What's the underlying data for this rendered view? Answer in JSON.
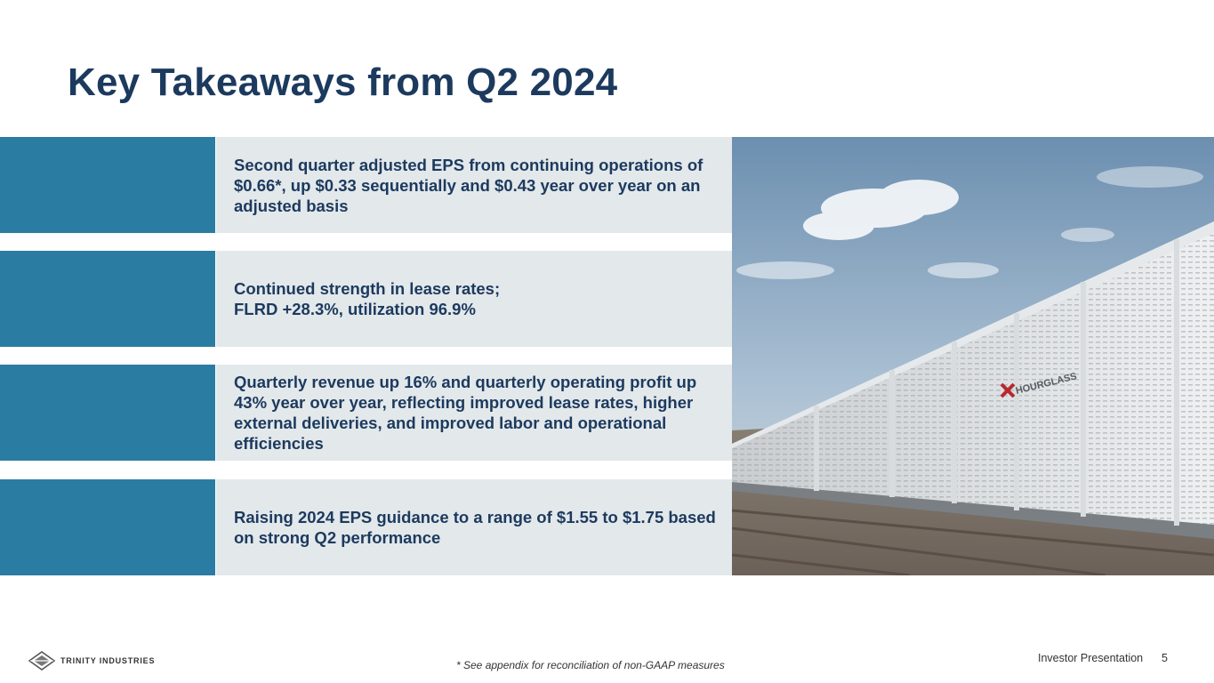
{
  "title": "Key Takeaways from Q2 2024",
  "takeaways": [
    {
      "text": "Second quarter adjusted EPS from continuing operations of $0.66*, up $0.33 sequentially and $0.43 year over year on an adjusted basis"
    },
    {
      "line1": "Continued strength in lease rates;",
      "line2": "FLRD +28.3%, utilization 96.9%"
    },
    {
      "text": "Quarterly revenue up 16% and quarterly operating profit up 43% year over year, reflecting improved lease rates, higher external deliveries, and improved labor and operational efficiencies"
    },
    {
      "text": "Raising 2024 EPS guidance to a range of $1.55 to $1.75 based on strong Q2 performance"
    }
  ],
  "photo": {
    "railcar_logo": "HOURGLASS"
  },
  "footer": {
    "logo_text": "TRINITY INDUSTRIES",
    "footnote": "* See appendix for reconciliation of non-GAAP measures",
    "label": "Investor Presentation",
    "page_number": "5"
  },
  "colors": {
    "title": "#1c3a5e",
    "accent": "#2b7ca3",
    "panel": "#e3e8eb"
  }
}
